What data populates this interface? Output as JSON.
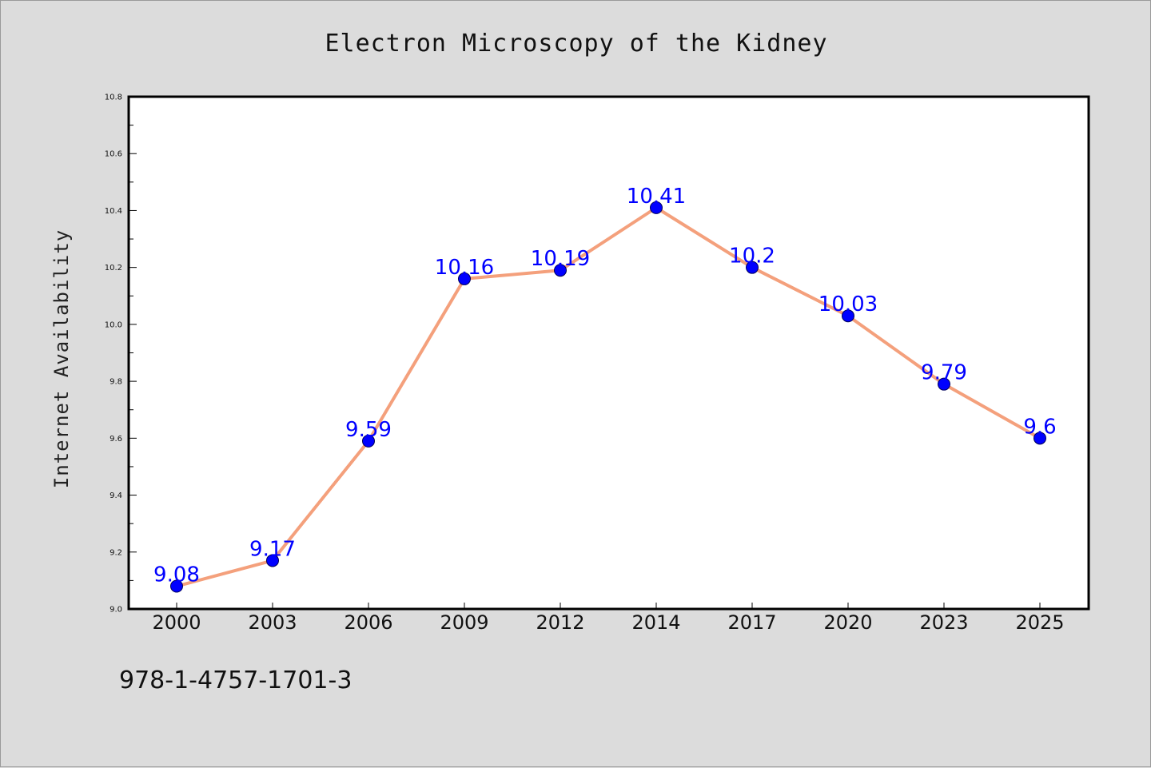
{
  "chart_data": {
    "type": "line",
    "title": "Electron Microscopy of the Kidney",
    "xlabel": "",
    "ylabel": "Internet Availability",
    "categories": [
      "2000",
      "2003",
      "2006",
      "2009",
      "2012",
      "2014",
      "2017",
      "2020",
      "2023",
      "2025"
    ],
    "series": [
      {
        "values": [
          9.08,
          9.17,
          9.59,
          10.16,
          10.19,
          10.41,
          10.2,
          10.03,
          9.79,
          9.6
        ],
        "data_labels": [
          "9.08",
          "9.17",
          "9.59",
          "10.16",
          "10.19",
          "10.41",
          "10.2",
          "10.03",
          "9.79",
          "9.6"
        ],
        "line_color": "#f4a07c",
        "marker_color": "#0000ff"
      }
    ],
    "ylim": [
      9.0,
      10.8
    ],
    "yticks": [
      "9.0",
      "9.2",
      "9.4",
      "9.6",
      "9.8",
      "10.0",
      "10.2",
      "10.4",
      "10.6",
      "10.8"
    ],
    "grid": false,
    "legend": "none",
    "label_color": "#0000ff"
  },
  "footnote": "978-1-4757-1701-3",
  "colors": {
    "background": "#dcdcdc",
    "plot_background": "#ffffff",
    "axis": "#000000"
  }
}
